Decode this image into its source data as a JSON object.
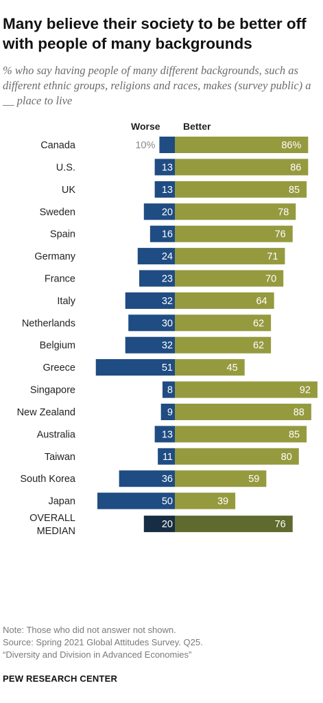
{
  "title": "Many believe their society to be better off with people of many backgrounds",
  "subtitle": "% who say having people of many different backgrounds, such as different ethnic groups, religions and races, makes (survey public) a __ place to live",
  "legend": {
    "worse": "Worse",
    "better": "Better"
  },
  "colors": {
    "worse": "#1f4c82",
    "better": "#959a3f",
    "worse_median": "#172d44",
    "better_median": "#5f6a2e",
    "first_worse_label": "#8a8a8a"
  },
  "chart_data": {
    "type": "bar",
    "orientation": "horizontal-diverging",
    "groups": [
      {
        "rows": [
          {
            "label": "Canada",
            "worse": 10,
            "better": 86,
            "worse_text": "10%",
            "better_text": "86%"
          },
          {
            "label": "U.S.",
            "worse": 13,
            "better": 86,
            "worse_text": "13",
            "better_text": "86"
          }
        ]
      },
      {
        "rows": [
          {
            "label": "UK",
            "worse": 13,
            "better": 85,
            "worse_text": "13",
            "better_text": "85"
          },
          {
            "label": "Sweden",
            "worse": 20,
            "better": 78,
            "worse_text": "20",
            "better_text": "78"
          },
          {
            "label": "Spain",
            "worse": 16,
            "better": 76,
            "worse_text": "16",
            "better_text": "76"
          },
          {
            "label": "Germany",
            "worse": 24,
            "better": 71,
            "worse_text": "24",
            "better_text": "71"
          },
          {
            "label": "France",
            "worse": 23,
            "better": 70,
            "worse_text": "23",
            "better_text": "70"
          },
          {
            "label": "Italy",
            "worse": 32,
            "better": 64,
            "worse_text": "32",
            "better_text": "64"
          },
          {
            "label": "Netherlands",
            "worse": 30,
            "better": 62,
            "worse_text": "30",
            "better_text": "62"
          },
          {
            "label": "Belgium",
            "worse": 32,
            "better": 62,
            "worse_text": "32",
            "better_text": "62"
          },
          {
            "label": "Greece",
            "worse": 51,
            "better": 45,
            "worse_text": "51",
            "better_text": "45"
          }
        ]
      },
      {
        "rows": [
          {
            "label": "Singapore",
            "worse": 8,
            "better": 92,
            "worse_text": "8",
            "better_text": "92"
          },
          {
            "label": "New Zealand",
            "worse": 9,
            "better": 88,
            "worse_text": "9",
            "better_text": "88"
          },
          {
            "label": "Australia",
            "worse": 13,
            "better": 85,
            "worse_text": "13",
            "better_text": "85"
          },
          {
            "label": "Taiwan",
            "worse": 11,
            "better": 80,
            "worse_text": "11",
            "better_text": "80"
          },
          {
            "label": "South Korea",
            "worse": 36,
            "better": 59,
            "worse_text": "36",
            "better_text": "59"
          },
          {
            "label": "Japan",
            "worse": 50,
            "better": 39,
            "worse_text": "50",
            "better_text": "39"
          }
        ]
      },
      {
        "median": true,
        "rows": [
          {
            "label": "OVERALL\nMEDIAN",
            "worse": 20,
            "better": 76,
            "worse_text": "20",
            "better_text": "76"
          }
        ]
      }
    ]
  },
  "footer": {
    "note": "Note: Those who did not answer not shown.",
    "source": "Source: Spring 2021 Global Attitudes Survey. Q25.",
    "report": "“Diversity and Division in Advanced Economies”"
  },
  "brand": "PEW RESEARCH CENTER"
}
